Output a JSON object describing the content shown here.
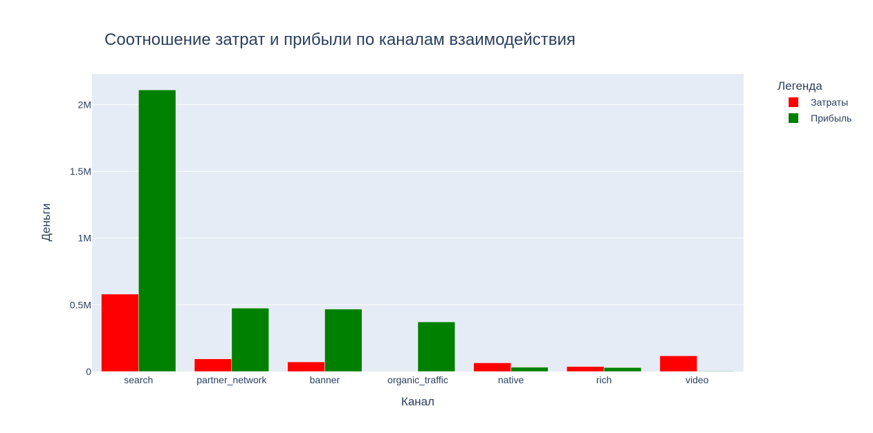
{
  "chart_data": {
    "type": "bar",
    "title": "Соотношение затрат и прибыли по каналам взаимодействия",
    "xlabel": "Канал",
    "ylabel": "Деньги",
    "categories": [
      "search",
      "partner_network",
      "banner",
      "organic_traffic",
      "native",
      "rich",
      "video"
    ],
    "series": [
      {
        "name": "Затраты",
        "color": "#ff0000",
        "values": [
          580000,
          95000,
          72000,
          0,
          65000,
          38000,
          118000
        ]
      },
      {
        "name": "Прибыль",
        "color": "#008000",
        "values": [
          2110000,
          475000,
          468000,
          372000,
          32000,
          30000,
          4000
        ]
      }
    ],
    "ylim": [
      0,
      2230000
    ],
    "yticks": [
      {
        "value": 0,
        "label": "0"
      },
      {
        "value": 500000,
        "label": "0.5M"
      },
      {
        "value": 1000000,
        "label": "1M"
      },
      {
        "value": 1500000,
        "label": "1.5M"
      },
      {
        "value": 2000000,
        "label": "2M"
      }
    ],
    "legend": {
      "title": "Легенда",
      "position": "top-right"
    },
    "grid": true,
    "plot_background": "#e5ecf6"
  }
}
